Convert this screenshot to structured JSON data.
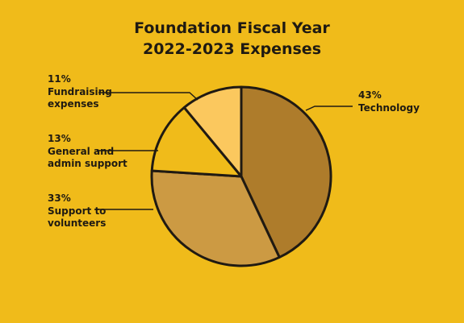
{
  "chart_data": {
    "type": "pie",
    "title_line1": "Foundation Fiscal Year",
    "title_line2": "2022-2023 Expenses",
    "slices": [
      {
        "label_line1": "Technology",
        "label_line2": "",
        "percent_text": "43%",
        "value": 43,
        "color": "#AE7C2B"
      },
      {
        "label_line1": "Support to",
        "label_line2": "volunteers",
        "percent_text": "33%",
        "value": 33,
        "color": "#CC9A43"
      },
      {
        "label_line1": "General and",
        "label_line2": "admin support",
        "percent_text": "13%",
        "value": 13,
        "color": "#F0BB1A"
      },
      {
        "label_line1": "Fundraising",
        "label_line2": "expenses",
        "percent_text": "11%",
        "value": 11,
        "color": "#FBC85E"
      }
    ],
    "start_angle": "12 o'clock",
    "direction": "clockwise",
    "outline_color": "#201a12"
  }
}
